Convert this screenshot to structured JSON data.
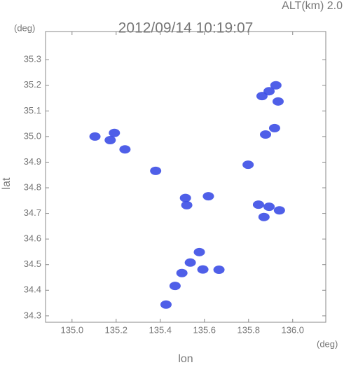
{
  "chart_data": {
    "type": "scatter",
    "title": "2012/09/14 10:19:07",
    "altitude_label": "ALT(km)  2.0",
    "y_unit": "(deg)",
    "x_unit": "(deg)",
    "x_label": "lon",
    "y_label": "lat",
    "x": [
      135.893,
      135.861,
      135.924,
      135.934,
      135.877,
      135.918,
      135.104,
      135.173,
      135.192,
      135.24,
      135.379,
      135.52,
      135.514,
      135.618,
      135.893,
      135.94,
      135.845,
      135.87,
      135.536,
      135.577,
      135.593,
      135.498,
      135.666,
      135.467,
      135.426,
      135.798
    ],
    "y": [
      35.177,
      35.158,
      35.2,
      35.137,
      35.008,
      35.033,
      35.0,
      34.986,
      35.014,
      34.95,
      34.866,
      34.732,
      34.76,
      34.767,
      34.726,
      34.712,
      34.734,
      34.686,
      34.508,
      34.549,
      34.481,
      34.467,
      34.48,
      34.417,
      34.344,
      34.89
    ],
    "color": "#3c4ee6",
    "xlim": [
      134.88,
      136.15
    ],
    "ylim": [
      34.275,
      35.41
    ],
    "xticks": [
      {
        "value": 135,
        "label": "135.0"
      },
      135.2,
      135.4,
      135.6,
      135.8,
      {
        "value": 136,
        "label": "136.0"
      }
    ],
    "yticks": [
      34.3,
      34.4,
      34.5,
      34.6,
      34.7,
      34.8,
      34.9,
      {
        "value": 35,
        "label": "35.0"
      },
      35.1,
      35.2,
      35.3
    ],
    "grid": false
  }
}
